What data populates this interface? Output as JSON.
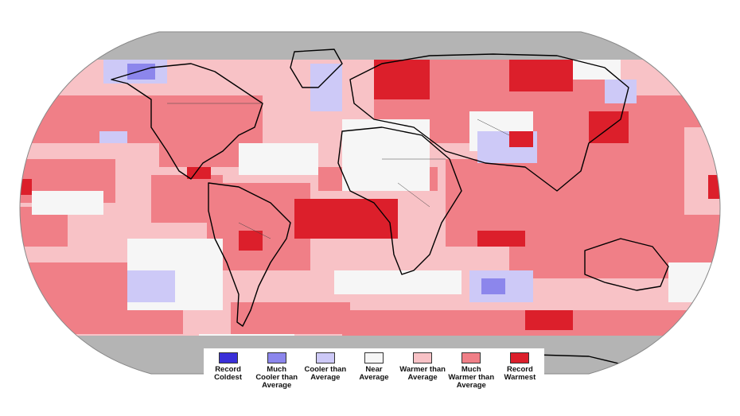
{
  "colors": {
    "background": "#ffffff",
    "no_data": "#b4b4b4",
    "coastline": "#000000",
    "borders": "#444444"
  },
  "legend": {
    "items": [
      {
        "label": "Record Coldest",
        "lines": [
          "Record",
          "Coldest"
        ],
        "color": "#3a2fd8"
      },
      {
        "label": "Much Cooler than Average",
        "lines": [
          "Much",
          "Cooler than",
          "Average"
        ],
        "color": "#8c86ec"
      },
      {
        "label": "Cooler than Average",
        "lines": [
          "Cooler than",
          "Average"
        ],
        "color": "#cdc9f7"
      },
      {
        "label": "Near Average",
        "lines": [
          "Near",
          "Average"
        ],
        "color": "#f6f6f6"
      },
      {
        "label": "Warmer than Average",
        "lines": [
          "Warmer than",
          "Average"
        ],
        "color": "#f8c2c6"
      },
      {
        "label": "Much Warmer than Average",
        "lines": [
          "Much",
          "Warmer than",
          "Average"
        ],
        "color": "#f07f87"
      },
      {
        "label": "Record Warmest",
        "lines": [
          "Record",
          "Warmest"
        ],
        "color": "#dc1f2b"
      }
    ]
  }
}
